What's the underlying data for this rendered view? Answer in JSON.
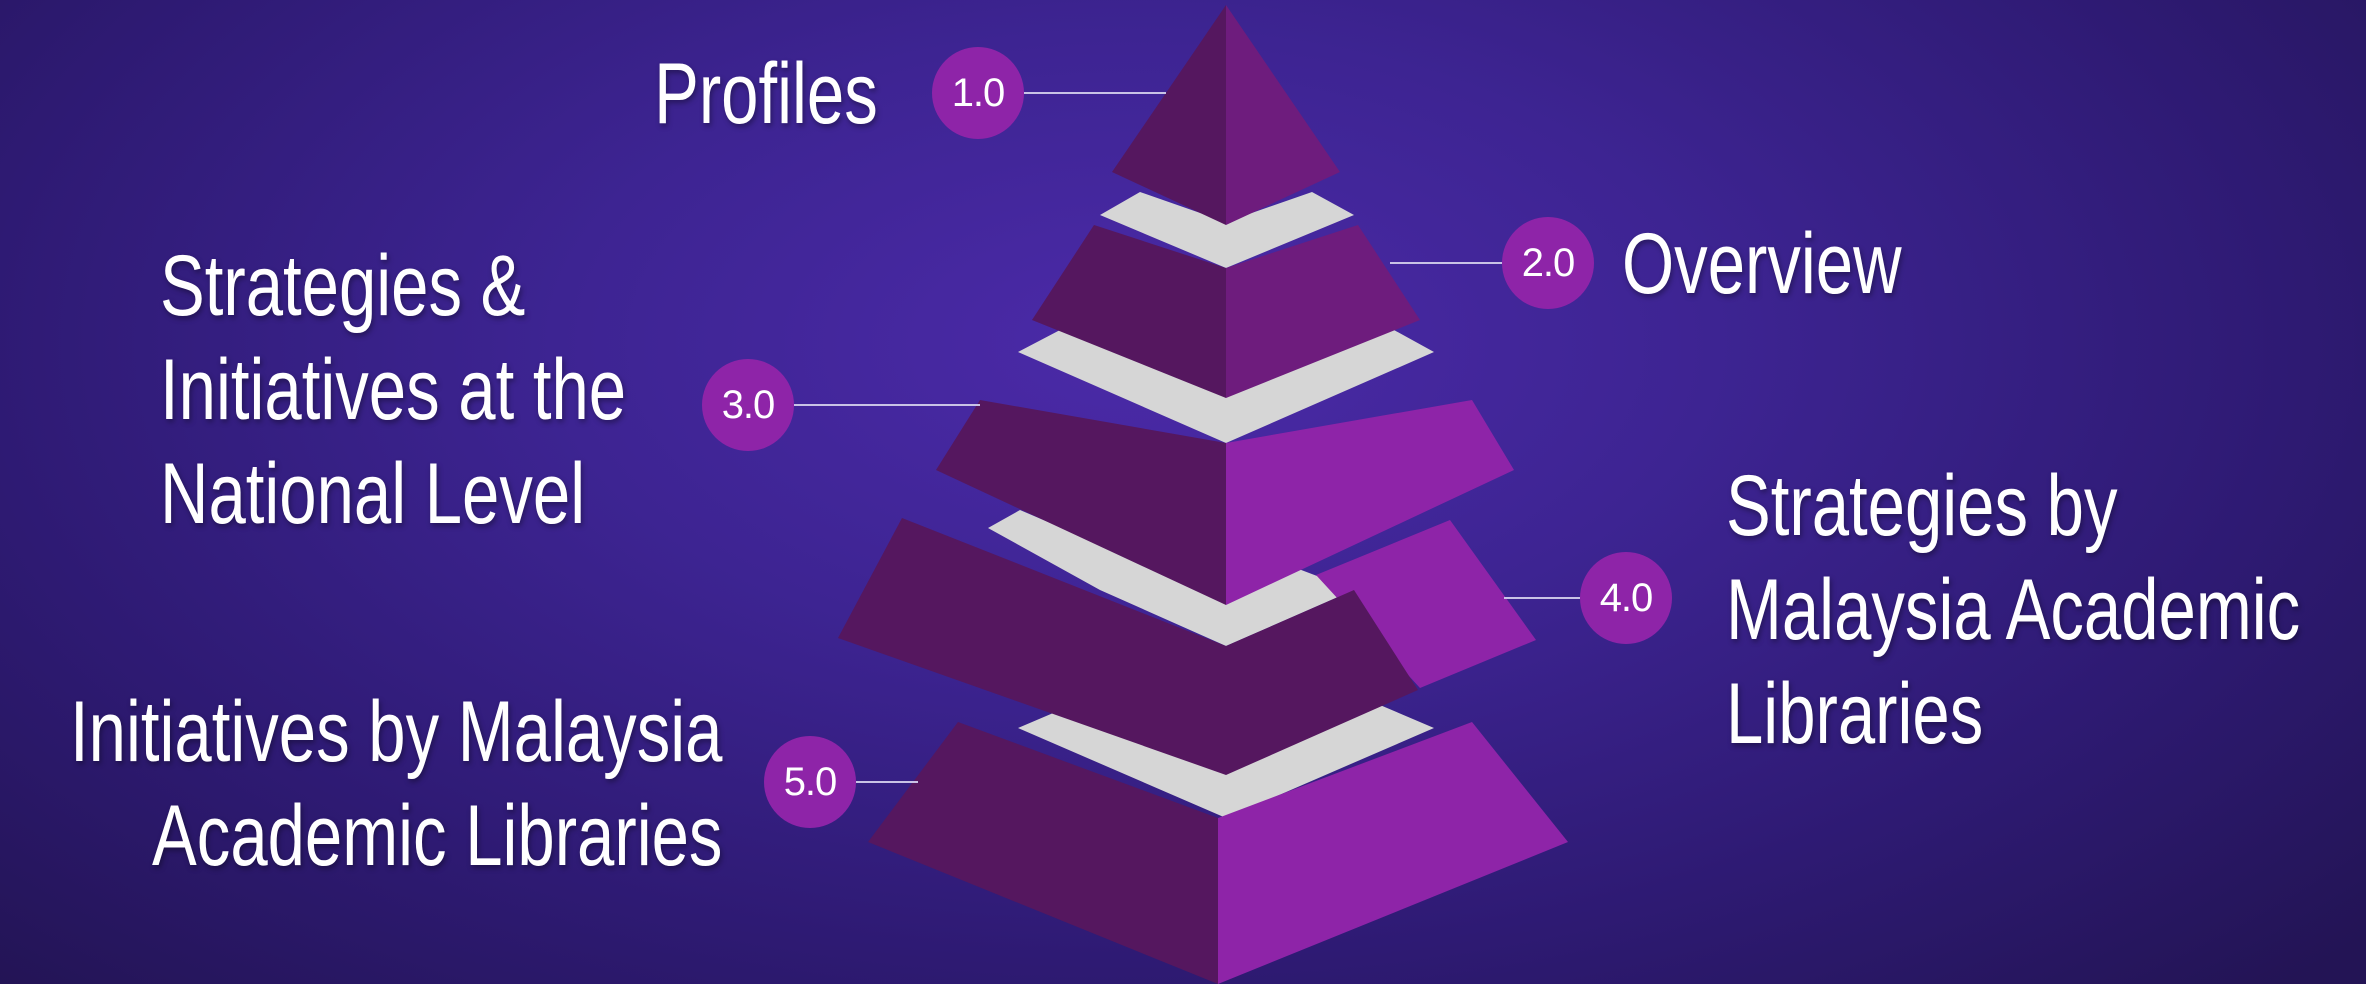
{
  "levels": [
    {
      "number": "1.0",
      "title_lines": [
        "Profiles"
      ]
    },
    {
      "number": "2.0",
      "title_lines": [
        "Overview"
      ]
    },
    {
      "number": "3.0",
      "title_lines": [
        "Strategies &",
        "Initiatives at the",
        "National Level"
      ]
    },
    {
      "number": "4.0",
      "title_lines": [
        "Strategies by",
        "Malaysia Academic",
        "Libraries"
      ]
    },
    {
      "number": "5.0",
      "title_lines": [
        "Initiatives by Malaysia",
        "Academic Libraries"
      ]
    }
  ],
  "colors": {
    "face_dark": "#55175f",
    "face_light": "#8e24a8",
    "apex_light": "#6e1c7d",
    "separator": "#d6d6d6",
    "badge": "#8e24a8",
    "text": "#ffffff"
  }
}
